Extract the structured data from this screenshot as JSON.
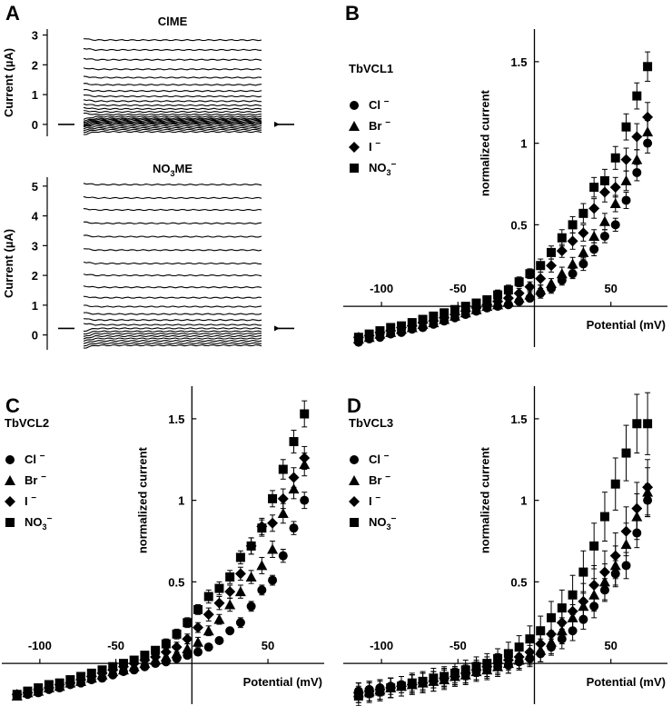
{
  "chart_data": [
    {
      "panel": "A",
      "type": "line",
      "title": "ClME",
      "ylabel": "Current (µA)",
      "y_ticks": [
        "0",
        "1",
        "2",
        "3"
      ],
      "ylim": [
        -0.4,
        3.2
      ],
      "steady_state_levels": [
        -0.25,
        -0.18,
        -0.12,
        -0.06,
        0.0,
        0.04,
        0.08,
        0.12,
        0.16,
        0.2,
        0.26,
        0.33,
        0.42,
        0.52,
        0.64,
        0.78,
        0.94,
        1.12,
        1.33,
        1.57,
        1.85,
        2.17,
        2.5,
        2.83
      ],
      "holding_level": 0.0
    },
    {
      "panel": "A",
      "type": "line",
      "title": "NO3ME",
      "title_main": "NO",
      "title_sub": "3",
      "title_rest": "ME",
      "ylabel": "Current (µA)",
      "y_ticks": [
        "0",
        "1",
        "2",
        "3",
        "4",
        "5"
      ],
      "ylim": [
        -0.5,
        5.3
      ],
      "steady_state_levels": [
        -0.35,
        -0.28,
        -0.2,
        -0.12,
        -0.04,
        0.04,
        0.12,
        0.22,
        0.34,
        0.5,
        0.7,
        0.95,
        1.25,
        1.6,
        2.0,
        2.4,
        2.85,
        3.3,
        3.75,
        4.2,
        4.6,
        5.05
      ],
      "holding_level": 0.22
    },
    {
      "panel": "B",
      "type": "scatter",
      "title": "TbVCL1",
      "xlabel": "Potential (mV)",
      "ylabel": "normalized current",
      "x_ticks": [
        "-100",
        "-50",
        "50"
      ],
      "y_ticks": [
        "0.5",
        "1",
        "1.5"
      ],
      "xlim": [
        -125,
        87
      ],
      "ylim": [
        -0.25,
        1.7
      ],
      "x": [
        -115,
        -108,
        -101,
        -94,
        -87,
        -80,
        -73,
        -66,
        -59,
        -52,
        -45,
        -38,
        -31,
        -24,
        -17,
        -10,
        -3,
        4,
        11,
        18,
        25,
        32,
        39,
        46,
        53,
        60,
        67,
        74
      ],
      "series": [
        {
          "name": "Cl",
          "marker": "circle",
          "values": [
            -0.22,
            -0.2,
            -0.19,
            -0.17,
            -0.16,
            -0.14,
            -0.13,
            -0.11,
            -0.09,
            -0.07,
            -0.05,
            -0.03,
            -0.01,
            0.0,
            0.01,
            0.03,
            0.05,
            0.08,
            0.11,
            0.16,
            0.2,
            0.26,
            0.35,
            0.43,
            0.5,
            0.65,
            0.82,
            1.0
          ],
          "err": [
            0.02,
            0.02,
            0.02,
            0.02,
            0.02,
            0.02,
            0.02,
            0.02,
            0.02,
            0.02,
            0.02,
            0.02,
            0.02,
            0.02,
            0.02,
            0.02,
            0.02,
            0.03,
            0.03,
            0.03,
            0.03,
            0.04,
            0.04,
            0.04,
            0.04,
            0.05,
            0.05,
            0.06
          ]
        },
        {
          "name": "Br",
          "marker": "triangle",
          "values": [
            -0.2,
            -0.19,
            -0.17,
            -0.16,
            -0.14,
            -0.13,
            -0.11,
            -0.1,
            -0.08,
            -0.06,
            -0.04,
            -0.02,
            0.0,
            0.01,
            0.03,
            0.05,
            0.07,
            0.1,
            0.14,
            0.2,
            0.26,
            0.33,
            0.43,
            0.52,
            0.63,
            0.77,
            0.9,
            1.07
          ],
          "err": [
            0.02,
            0.02,
            0.02,
            0.02,
            0.02,
            0.02,
            0.02,
            0.02,
            0.02,
            0.02,
            0.02,
            0.02,
            0.02,
            0.02,
            0.02,
            0.02,
            0.03,
            0.03,
            0.03,
            0.04,
            0.04,
            0.04,
            0.04,
            0.05,
            0.05,
            0.06,
            0.06,
            0.07
          ]
        },
        {
          "name": "I",
          "marker": "diamond",
          "values": [
            -0.19,
            -0.18,
            -0.16,
            -0.15,
            -0.13,
            -0.12,
            -0.1,
            -0.09,
            -0.07,
            -0.05,
            -0.03,
            -0.01,
            0.01,
            0.03,
            0.05,
            0.08,
            0.12,
            0.17,
            0.25,
            0.34,
            0.4,
            0.45,
            0.6,
            0.7,
            0.73,
            0.9,
            1.04,
            1.16
          ],
          "err": [
            0.02,
            0.02,
            0.02,
            0.02,
            0.02,
            0.02,
            0.02,
            0.02,
            0.02,
            0.02,
            0.02,
            0.02,
            0.02,
            0.03,
            0.03,
            0.03,
            0.03,
            0.04,
            0.04,
            0.04,
            0.05,
            0.05,
            0.06,
            0.06,
            0.06,
            0.07,
            0.08,
            0.09
          ]
        },
        {
          "name": "NO3",
          "marker": "square",
          "values": [
            -0.19,
            -0.17,
            -0.15,
            -0.13,
            -0.12,
            -0.1,
            -0.08,
            -0.06,
            -0.04,
            -0.02,
            0.0,
            0.02,
            0.04,
            0.07,
            0.1,
            0.15,
            0.2,
            0.25,
            0.33,
            0.42,
            0.5,
            0.57,
            0.73,
            0.77,
            0.91,
            1.1,
            1.29,
            1.47
          ],
          "err": [
            0.02,
            0.02,
            0.02,
            0.02,
            0.02,
            0.02,
            0.02,
            0.02,
            0.02,
            0.02,
            0.02,
            0.02,
            0.02,
            0.03,
            0.03,
            0.03,
            0.03,
            0.04,
            0.04,
            0.05,
            0.05,
            0.06,
            0.06,
            0.07,
            0.07,
            0.08,
            0.08,
            0.09
          ]
        }
      ]
    },
    {
      "panel": "C",
      "type": "scatter",
      "title": "TbVCL2",
      "xlabel": "Potential (mV)",
      "ylabel": "normalized current",
      "x_ticks": [
        "-100",
        "-50",
        "50"
      ],
      "y_ticks": [
        "0.5",
        "1",
        "1.5"
      ],
      "xlim": [
        -125,
        87
      ],
      "ylim": [
        -0.25,
        1.7
      ],
      "x": [
        -115,
        -108,
        -101,
        -94,
        -87,
        -80,
        -73,
        -66,
        -59,
        -52,
        -45,
        -38,
        -31,
        -24,
        -17,
        -10,
        -3,
        4,
        11,
        18,
        25,
        32,
        39,
        46,
        53,
        60,
        67,
        74
      ],
      "series": [
        {
          "name": "Cl",
          "marker": "circle",
          "values": [
            -0.2,
            -0.19,
            -0.18,
            -0.16,
            -0.15,
            -0.13,
            -0.12,
            -0.1,
            -0.09,
            -0.07,
            -0.05,
            -0.04,
            -0.02,
            0.0,
            0.01,
            0.03,
            0.05,
            0.07,
            0.1,
            0.14,
            0.2,
            0.25,
            0.35,
            0.45,
            0.51,
            0.66,
            0.83,
            1.0
          ],
          "err": [
            0.02,
            0.02,
            0.02,
            0.02,
            0.02,
            0.02,
            0.02,
            0.02,
            0.02,
            0.02,
            0.02,
            0.02,
            0.02,
            0.02,
            0.02,
            0.02,
            0.02,
            0.02,
            0.02,
            0.02,
            0.02,
            0.03,
            0.03,
            0.03,
            0.03,
            0.04,
            0.04,
            0.05
          ]
        },
        {
          "name": "Br",
          "marker": "triangle",
          "values": [
            -0.2,
            -0.18,
            -0.17,
            -0.15,
            -0.14,
            -0.12,
            -0.11,
            -0.09,
            -0.07,
            -0.05,
            -0.04,
            -0.02,
            0.0,
            0.02,
            0.04,
            0.06,
            0.09,
            0.13,
            0.2,
            0.27,
            0.36,
            0.44,
            0.53,
            0.6,
            0.7,
            0.92,
            1.07,
            1.22
          ],
          "err": [
            0.02,
            0.02,
            0.02,
            0.02,
            0.02,
            0.02,
            0.02,
            0.02,
            0.02,
            0.02,
            0.02,
            0.02,
            0.02,
            0.02,
            0.02,
            0.02,
            0.03,
            0.03,
            0.03,
            0.03,
            0.04,
            0.04,
            0.04,
            0.05,
            0.05,
            0.06,
            0.06,
            0.07
          ]
        },
        {
          "name": "I",
          "marker": "diamond",
          "values": [
            -0.19,
            -0.18,
            -0.16,
            -0.15,
            -0.13,
            -0.12,
            -0.1,
            -0.08,
            -0.06,
            -0.04,
            -0.02,
            0.0,
            0.02,
            0.04,
            0.07,
            0.1,
            0.15,
            0.22,
            0.3,
            0.37,
            0.44,
            0.55,
            0.72,
            0.84,
            0.86,
            1.01,
            1.14,
            1.26
          ],
          "err": [
            0.02,
            0.02,
            0.02,
            0.02,
            0.02,
            0.02,
            0.02,
            0.02,
            0.02,
            0.02,
            0.02,
            0.02,
            0.02,
            0.02,
            0.03,
            0.03,
            0.03,
            0.03,
            0.04,
            0.04,
            0.04,
            0.04,
            0.05,
            0.05,
            0.05,
            0.06,
            0.06,
            0.07
          ]
        },
        {
          "name": "NO3",
          "marker": "square",
          "values": [
            -0.19,
            -0.17,
            -0.15,
            -0.13,
            -0.12,
            -0.1,
            -0.08,
            -0.06,
            -0.04,
            -0.02,
            0.0,
            0.02,
            0.05,
            0.08,
            0.12,
            0.18,
            0.25,
            0.33,
            0.41,
            0.46,
            0.53,
            0.65,
            0.72,
            0.83,
            1.01,
            1.19,
            1.36,
            1.53
          ],
          "err": [
            0.02,
            0.02,
            0.02,
            0.02,
            0.02,
            0.02,
            0.02,
            0.02,
            0.02,
            0.02,
            0.02,
            0.02,
            0.02,
            0.02,
            0.03,
            0.03,
            0.03,
            0.03,
            0.04,
            0.04,
            0.04,
            0.04,
            0.05,
            0.05,
            0.05,
            0.06,
            0.07,
            0.08
          ]
        }
      ]
    },
    {
      "panel": "D",
      "type": "scatter",
      "title": "TbVCL3",
      "xlabel": "Potential (mV)",
      "ylabel": "normalized current",
      "x_ticks": [
        "-100",
        "-50",
        "50"
      ],
      "y_ticks": [
        "0.5",
        "1",
        "1.5"
      ],
      "xlim": [
        -125,
        87
      ],
      "ylim": [
        -0.25,
        1.7
      ],
      "x": [
        -115,
        -108,
        -101,
        -94,
        -87,
        -80,
        -73,
        -66,
        -59,
        -52,
        -45,
        -38,
        -31,
        -24,
        -17,
        -10,
        -3,
        4,
        11,
        18,
        25,
        32,
        39,
        46,
        53,
        60,
        67,
        74
      ],
      "series": [
        {
          "name": "Cl",
          "marker": "circle",
          "values": [
            -0.17,
            -0.16,
            -0.15,
            -0.14,
            -0.13,
            -0.12,
            -0.11,
            -0.1,
            -0.09,
            -0.08,
            -0.07,
            -0.05,
            -0.04,
            -0.02,
            -0.01,
            0.01,
            0.03,
            0.06,
            0.1,
            0.15,
            0.2,
            0.27,
            0.35,
            0.45,
            0.55,
            0.6,
            0.8,
            1.0
          ],
          "err": [
            0.05,
            0.05,
            0.05,
            0.05,
            0.05,
            0.05,
            0.05,
            0.05,
            0.05,
            0.05,
            0.05,
            0.05,
            0.05,
            0.05,
            0.05,
            0.05,
            0.05,
            0.05,
            0.05,
            0.06,
            0.06,
            0.06,
            0.07,
            0.07,
            0.08,
            0.08,
            0.09,
            0.1
          ]
        },
        {
          "name": "Br",
          "marker": "triangle",
          "values": [
            -0.18,
            -0.17,
            -0.16,
            -0.15,
            -0.14,
            -0.13,
            -0.12,
            -0.11,
            -0.1,
            -0.08,
            -0.07,
            -0.05,
            -0.04,
            -0.02,
            0.0,
            0.02,
            0.05,
            0.08,
            0.13,
            0.2,
            0.28,
            0.35,
            0.42,
            0.5,
            0.6,
            0.73,
            0.9,
            1.05
          ],
          "err": [
            0.06,
            0.06,
            0.06,
            0.06,
            0.06,
            0.06,
            0.06,
            0.06,
            0.06,
            0.06,
            0.06,
            0.06,
            0.06,
            0.06,
            0.06,
            0.06,
            0.06,
            0.07,
            0.07,
            0.08,
            0.08,
            0.09,
            0.1,
            0.11,
            0.12,
            0.13,
            0.14,
            0.15
          ]
        },
        {
          "name": "I",
          "marker": "diamond",
          "values": [
            -0.18,
            -0.17,
            -0.16,
            -0.15,
            -0.14,
            -0.13,
            -0.12,
            -0.11,
            -0.09,
            -0.08,
            -0.06,
            -0.04,
            -0.02,
            0.0,
            0.02,
            0.04,
            0.07,
            0.12,
            0.18,
            0.25,
            0.32,
            0.38,
            0.48,
            0.56,
            0.66,
            0.81,
            0.95,
            1.08
          ],
          "err": [
            0.06,
            0.06,
            0.06,
            0.06,
            0.06,
            0.06,
            0.06,
            0.06,
            0.06,
            0.06,
            0.06,
            0.06,
            0.06,
            0.06,
            0.06,
            0.07,
            0.07,
            0.08,
            0.08,
            0.09,
            0.1,
            0.11,
            0.12,
            0.13,
            0.14,
            0.15,
            0.16,
            0.17
          ]
        },
        {
          "name": "NO3",
          "marker": "square",
          "values": [
            -0.2,
            -0.18,
            -0.17,
            -0.15,
            -0.14,
            -0.12,
            -0.11,
            -0.09,
            -0.08,
            -0.06,
            -0.04,
            -0.02,
            0.0,
            0.03,
            0.06,
            0.1,
            0.15,
            0.2,
            0.28,
            0.34,
            0.42,
            0.56,
            0.72,
            0.9,
            1.1,
            1.29,
            1.47,
            1.47
          ],
          "err": [
            0.06,
            0.06,
            0.06,
            0.06,
            0.06,
            0.06,
            0.06,
            0.06,
            0.06,
            0.06,
            0.06,
            0.06,
            0.06,
            0.06,
            0.07,
            0.07,
            0.08,
            0.09,
            0.1,
            0.11,
            0.12,
            0.13,
            0.14,
            0.15,
            0.16,
            0.17,
            0.18,
            0.19
          ]
        }
      ]
    }
  ],
  "panel_labels": [
    "A",
    "B",
    "C",
    "D"
  ],
  "legend_minus": "−"
}
